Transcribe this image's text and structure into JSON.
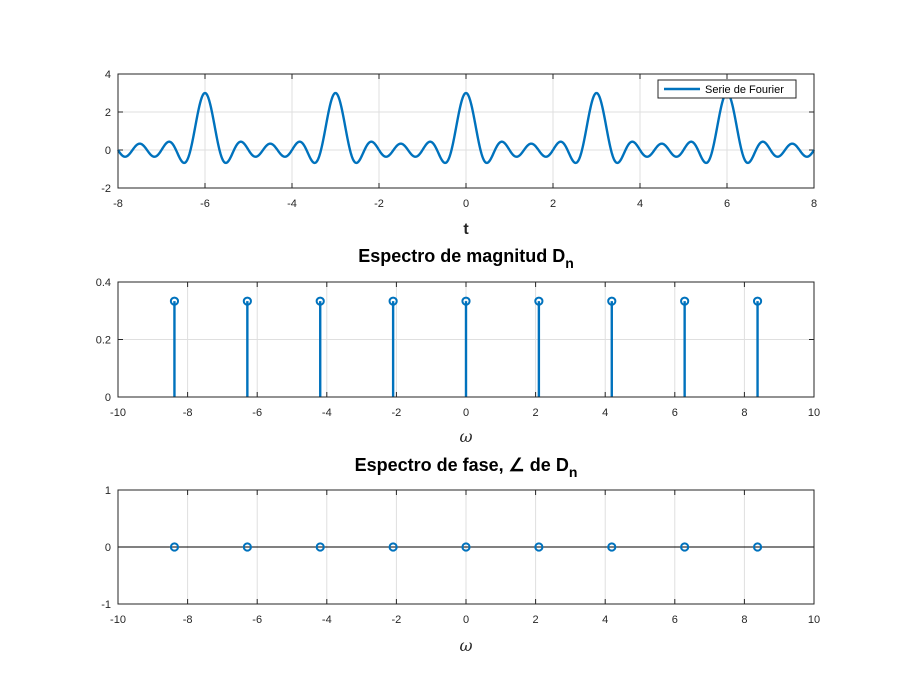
{
  "colors": {
    "series": "#0072BD",
    "grid": "#DFDFDF",
    "axes": "#262626"
  },
  "chart_data": [
    {
      "type": "line",
      "title": "",
      "xlabel": "t",
      "ylabel": "",
      "xlim": [
        -8,
        8
      ],
      "ylim": [
        -2,
        4
      ],
      "xticks": [
        "-8",
        "-6",
        "-4",
        "-2",
        "0",
        "2",
        "4",
        "6",
        "8"
      ],
      "yticks": [
        "-2",
        "0",
        "2",
        "4"
      ],
      "grid": true,
      "legend": {
        "placement": "top-right",
        "entries": [
          "Serie de Fourier"
        ]
      },
      "series": [
        {
          "name": "Serie de Fourier",
          "function": "sum_{n=-4}^{4} (1/3) cos(n*2*pi*t/3)",
          "period": 3,
          "peak": 3
        }
      ]
    },
    {
      "type": "stem",
      "title": "Espectro de magnitud D",
      "title_subscript": "n",
      "xlabel": "ω",
      "ylabel": "",
      "xlim": [
        -10,
        10
      ],
      "ylim": [
        0,
        0.4
      ],
      "xticks": [
        "-10",
        "-8",
        "-6",
        "-4",
        "-2",
        "0",
        "2",
        "4",
        "6",
        "8",
        "10"
      ],
      "yticks": [
        "0",
        "0.2",
        "0.4"
      ],
      "grid": true,
      "x": [
        -8.378,
        -6.283,
        -4.189,
        -2.094,
        0,
        2.094,
        4.189,
        6.283,
        8.378
      ],
      "y": [
        0.3333,
        0.3333,
        0.3333,
        0.3333,
        0.3333,
        0.3333,
        0.3333,
        0.3333,
        0.3333
      ]
    },
    {
      "type": "stem",
      "title": "Espectro de fase, ∠ de D",
      "title_subscript": "n",
      "xlabel": "ω",
      "ylabel": "",
      "xlim": [
        -10,
        10
      ],
      "ylim": [
        -1,
        1
      ],
      "xticks": [
        "-10",
        "-8",
        "-6",
        "-4",
        "-2",
        "0",
        "2",
        "4",
        "6",
        "8",
        "10"
      ],
      "yticks": [
        "-1",
        "0",
        "1"
      ],
      "grid": true,
      "x": [
        -8.378,
        -6.283,
        -4.189,
        -2.094,
        0,
        2.094,
        4.189,
        6.283,
        8.378
      ],
      "y": [
        0,
        0,
        0,
        0,
        0,
        0,
        0,
        0,
        0
      ]
    }
  ]
}
